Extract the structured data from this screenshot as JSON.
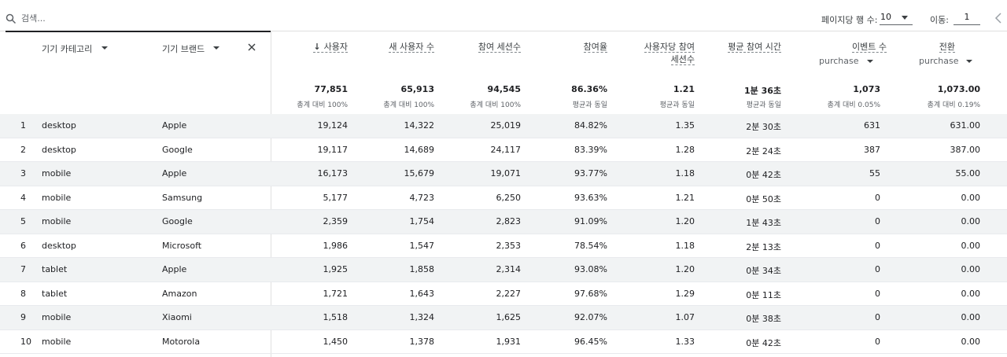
{
  "toolbar": {
    "search_placeholder": "검색...",
    "rows_per_page_label": "페이지당 행 수:",
    "rows_per_page_value": "10",
    "goto_label": "이동:",
    "goto_value": "1"
  },
  "dimensions": {
    "category_label": "기기 카테고리",
    "brand_label": "기기 브랜드"
  },
  "metrics": [
    {
      "key": "users",
      "label": "사용자",
      "sorted": true,
      "total": "77,851",
      "total_pct": "총계 대비 100%"
    },
    {
      "key": "new_users",
      "label": "새 사용자 수",
      "total": "65,913",
      "total_pct": "총계 대비 100%"
    },
    {
      "key": "engaged_sessions",
      "label": "참여 세션수",
      "total": "94,545",
      "total_pct": "총계 대비 100%"
    },
    {
      "key": "engagement_rate",
      "label": "참여율",
      "total": "86.36%",
      "total_pct": "평균과 동일"
    },
    {
      "key": "engaged_sessions_per_user",
      "label_line1": "사용자당 참여",
      "label_line2": "세션수",
      "total": "1.21",
      "total_pct": "평균과 동일"
    },
    {
      "key": "avg_engagement_time",
      "label": "평균 참여 시간",
      "total": "1분 36초",
      "total_pct": "평균과 동일"
    },
    {
      "key": "event_count",
      "label": "이벤트 수",
      "sub": "purchase",
      "total": "1,073",
      "total_pct": "총계 대비 0.05%"
    },
    {
      "key": "conversions",
      "label": "전환",
      "sub": "purchase",
      "total": "1,073.00",
      "total_pct": "총계 대비 0.19%"
    }
  ],
  "rows": [
    {
      "idx": "1",
      "category": "desktop",
      "brand": "Apple",
      "users": "19,124",
      "new_users": "14,322",
      "engaged_sessions": "25,019",
      "engagement_rate": "84.82%",
      "per_user": "1.35",
      "avg_time": "2분 30초",
      "events": "631",
      "conversions": "631.00"
    },
    {
      "idx": "2",
      "category": "desktop",
      "brand": "Google",
      "users": "19,117",
      "new_users": "14,689",
      "engaged_sessions": "24,117",
      "engagement_rate": "83.39%",
      "per_user": "1.28",
      "avg_time": "2분 24초",
      "events": "387",
      "conversions": "387.00"
    },
    {
      "idx": "3",
      "category": "mobile",
      "brand": "Apple",
      "users": "16,173",
      "new_users": "15,679",
      "engaged_sessions": "19,071",
      "engagement_rate": "93.77%",
      "per_user": "1.18",
      "avg_time": "0분 42초",
      "events": "55",
      "conversions": "55.00"
    },
    {
      "idx": "4",
      "category": "mobile",
      "brand": "Samsung",
      "users": "5,177",
      "new_users": "4,723",
      "engaged_sessions": "6,250",
      "engagement_rate": "93.63%",
      "per_user": "1.21",
      "avg_time": "0분 50초",
      "events": "0",
      "conversions": "0.00"
    },
    {
      "idx": "5",
      "category": "mobile",
      "brand": "Google",
      "users": "2,359",
      "new_users": "1,754",
      "engaged_sessions": "2,823",
      "engagement_rate": "91.09%",
      "per_user": "1.20",
      "avg_time": "1분 43초",
      "events": "0",
      "conversions": "0.00"
    },
    {
      "idx": "6",
      "category": "desktop",
      "brand": "Microsoft",
      "users": "1,986",
      "new_users": "1,547",
      "engaged_sessions": "2,353",
      "engagement_rate": "78.54%",
      "per_user": "1.18",
      "avg_time": "2분 13초",
      "events": "0",
      "conversions": "0.00"
    },
    {
      "idx": "7",
      "category": "tablet",
      "brand": "Apple",
      "users": "1,925",
      "new_users": "1,858",
      "engaged_sessions": "2,314",
      "engagement_rate": "93.08%",
      "per_user": "1.20",
      "avg_time": "0분 34초",
      "events": "0",
      "conversions": "0.00"
    },
    {
      "idx": "8",
      "category": "tablet",
      "brand": "Amazon",
      "users": "1,721",
      "new_users": "1,643",
      "engaged_sessions": "2,227",
      "engagement_rate": "97.68%",
      "per_user": "1.29",
      "avg_time": "0분 11초",
      "events": "0",
      "conversions": "0.00"
    },
    {
      "idx": "9",
      "category": "mobile",
      "brand": "Xiaomi",
      "users": "1,518",
      "new_users": "1,324",
      "engaged_sessions": "1,625",
      "engagement_rate": "92.07%",
      "per_user": "1.07",
      "avg_time": "0분 38초",
      "events": "0",
      "conversions": "0.00"
    },
    {
      "idx": "10",
      "category": "mobile",
      "brand": "Motorola",
      "users": "1,450",
      "new_users": "1,378",
      "engaged_sessions": "1,931",
      "engagement_rate": "96.45%",
      "per_user": "1.33",
      "avg_time": "0분 42초",
      "events": "0",
      "conversions": "0.00"
    }
  ],
  "colors": {
    "shaded_row": "#f1f3f4",
    "divider": "#e0e0e0",
    "text": "#202124"
  }
}
